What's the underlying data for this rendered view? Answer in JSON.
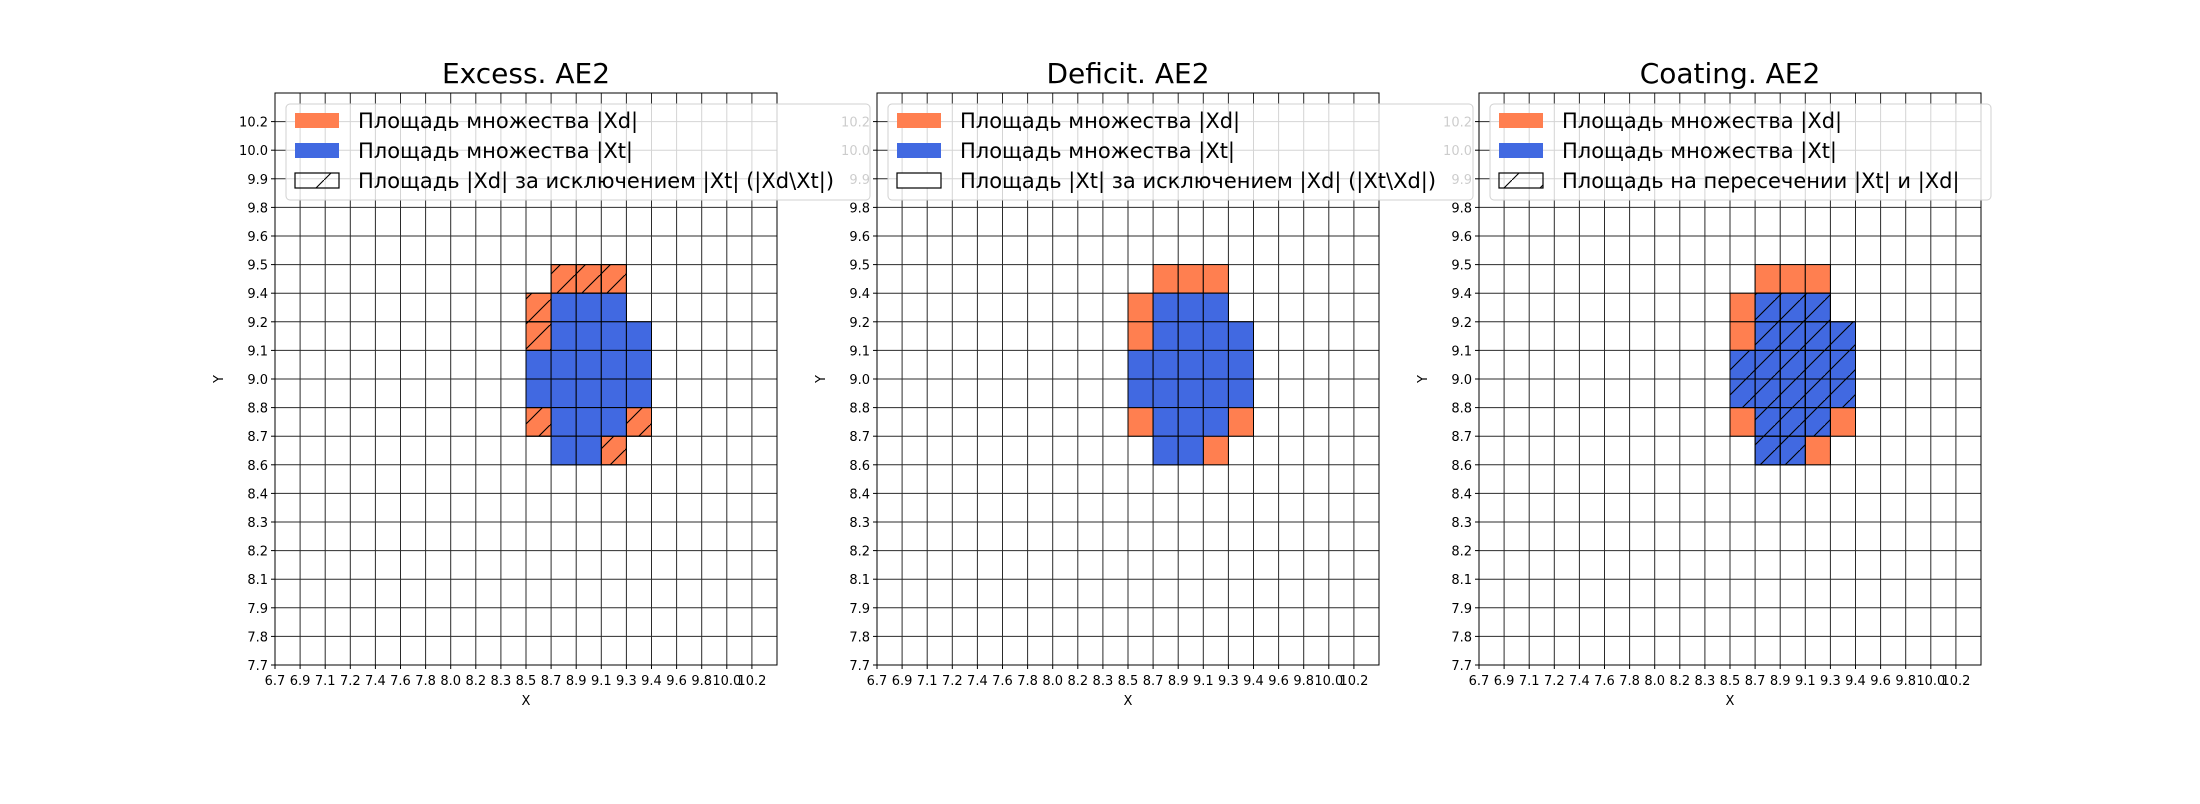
{
  "colors": {
    "xd": "#ff7f50",
    "xt": "#4169e1",
    "grid": "#2b2b2b",
    "edge": "#000000"
  },
  "chart_data": [
    {
      "type": "heatmap",
      "title": "Excess. AE2",
      "xlabel": "X",
      "ylabel": "Y",
      "grid": true,
      "legend_placement": "upper-left",
      "hatched_set": "xd_minus_xt",
      "legend": [
        {
          "label": "Площадь множества |Xd|",
          "style": "xd"
        },
        {
          "label": "Площадь множества  |Xt|",
          "style": "xt"
        },
        {
          "label": "Площадь |Xd| за исключением |Xt| (|Xd\\Xt|)",
          "style": "hatch"
        }
      ]
    },
    {
      "type": "heatmap",
      "title": "Deficit. AE2",
      "xlabel": "X",
      "ylabel": "Y",
      "grid": true,
      "legend_placement": "upper-left",
      "hatched_set": "xt_minus_xd",
      "legend": [
        {
          "label": "Площадь множества |Xd|",
          "style": "xd"
        },
        {
          "label": "Площадь множества  |Xt|",
          "style": "xt"
        },
        {
          "label": "Площадь |Xt| за исключением |Xd| (|Xt\\Xd|)",
          "style": "empty"
        }
      ]
    },
    {
      "type": "heatmap",
      "title": "Coating. AE2",
      "xlabel": "X",
      "ylabel": "Y",
      "grid": true,
      "legend_placement": "upper-left",
      "hatched_set": "intersection",
      "legend": [
        {
          "label": "Площадь множества |Xd|",
          "style": "xd"
        },
        {
          "label": "Площадь множества  |Xt|",
          "style": "xt"
        },
        {
          "label": "Площадь на пересечении |Xt| и |Xd|",
          "style": "hatch"
        }
      ]
    }
  ],
  "axes": {
    "xticks": [
      "6.7",
      "6.9",
      "7.1",
      "7.2",
      "7.4",
      "7.6",
      "7.8",
      "8.0",
      "8.2",
      "8.3",
      "8.5",
      "8.7",
      "8.9",
      "9.1",
      "9.3",
      "9.4",
      "9.6",
      "9.8",
      "10.0",
      "10.2"
    ],
    "yticks": [
      "7.7",
      "7.8",
      "7.9",
      "8.1",
      "8.2",
      "8.3",
      "8.4",
      "8.6",
      "8.7",
      "8.8",
      "9.0",
      "9.1",
      "9.2",
      "9.4",
      "9.5",
      "9.6",
      "9.8",
      "9.9",
      "10.0",
      "10.2"
    ]
  },
  "cells": {
    "xd": [
      [
        "8.7",
        "9.4"
      ],
      [
        "8.9",
        "9.4"
      ],
      [
        "9.1",
        "9.4"
      ],
      [
        "8.5",
        "9.2"
      ],
      [
        "8.7",
        "9.2"
      ],
      [
        "8.9",
        "9.2"
      ],
      [
        "9.1",
        "9.2"
      ],
      [
        "8.5",
        "9.1"
      ],
      [
        "8.7",
        "9.1"
      ],
      [
        "8.9",
        "9.1"
      ],
      [
        "9.1",
        "9.1"
      ],
      [
        "9.3",
        "9.1"
      ],
      [
        "8.5",
        "9.0"
      ],
      [
        "8.7",
        "9.0"
      ],
      [
        "8.9",
        "9.0"
      ],
      [
        "9.1",
        "9.0"
      ],
      [
        "9.3",
        "9.0"
      ],
      [
        "8.5",
        "8.8"
      ],
      [
        "8.7",
        "8.8"
      ],
      [
        "8.9",
        "8.8"
      ],
      [
        "9.1",
        "8.8"
      ],
      [
        "9.3",
        "8.8"
      ],
      [
        "8.5",
        "8.7"
      ],
      [
        "8.7",
        "8.7"
      ],
      [
        "8.9",
        "8.7"
      ],
      [
        "9.1",
        "8.7"
      ],
      [
        "9.3",
        "8.7"
      ],
      [
        "8.7",
        "8.6"
      ],
      [
        "8.9",
        "8.6"
      ],
      [
        "9.1",
        "8.6"
      ]
    ],
    "xt": [
      [
        "8.7",
        "9.2"
      ],
      [
        "8.9",
        "9.2"
      ],
      [
        "9.1",
        "9.2"
      ],
      [
        "8.7",
        "9.1"
      ],
      [
        "8.9",
        "9.1"
      ],
      [
        "9.1",
        "9.1"
      ],
      [
        "9.3",
        "9.1"
      ],
      [
        "8.5",
        "9.0"
      ],
      [
        "8.7",
        "9.0"
      ],
      [
        "8.9",
        "9.0"
      ],
      [
        "9.1",
        "9.0"
      ],
      [
        "9.3",
        "9.0"
      ],
      [
        "8.5",
        "8.8"
      ],
      [
        "8.7",
        "8.8"
      ],
      [
        "8.9",
        "8.8"
      ],
      [
        "9.1",
        "8.8"
      ],
      [
        "9.3",
        "8.8"
      ],
      [
        "8.7",
        "8.7"
      ],
      [
        "8.9",
        "8.7"
      ],
      [
        "9.1",
        "8.7"
      ],
      [
        "8.7",
        "8.6"
      ],
      [
        "8.9",
        "8.6"
      ]
    ]
  }
}
